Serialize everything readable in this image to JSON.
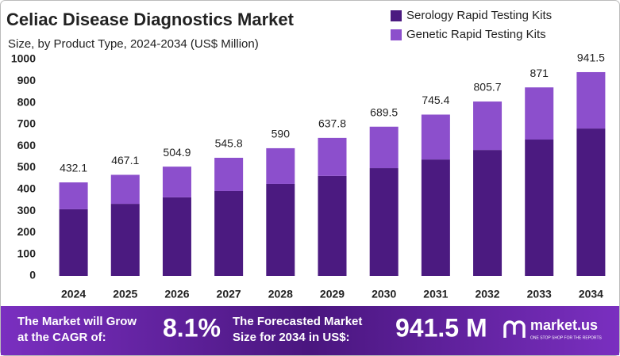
{
  "chart_data": {
    "type": "stacked-bar",
    "title": "Celiac Disease Diagnostics Market",
    "subtitle": "Size, by Product Type, 2024-2034 (US$ Million)",
    "categories": [
      "2024",
      "2025",
      "2026",
      "2027",
      "2028",
      "2029",
      "2030",
      "2031",
      "2032",
      "2033",
      "2034"
    ],
    "series": [
      {
        "name": "Serology Rapid Testing Kits",
        "color": "#4b1a80",
        "values": [
          308,
          333,
          363,
          392,
          425,
          462,
          498,
          538,
          582,
          630,
          681
        ]
      },
      {
        "name": "Genetic Rapid Testing Kits",
        "color": "#8c4fcc",
        "values": [
          124.1,
          134.1,
          141.9,
          153.8,
          165.0,
          175.8,
          191.5,
          207.4,
          223.7,
          241.0,
          260.5
        ]
      }
    ],
    "totals": [
      432.1,
      467.1,
      504.9,
      545.8,
      590.0,
      637.8,
      689.5,
      745.4,
      805.7,
      871.0,
      941.5
    ],
    "ylim": [
      0,
      1000
    ],
    "yticks": [
      0,
      100,
      200,
      300,
      400,
      500,
      600,
      700,
      800,
      900,
      1000
    ],
    "grid": false,
    "legend": "top-right"
  },
  "footer": {
    "cagr_text": [
      "The Market will Grow",
      "at the CAGR of:"
    ],
    "cagr_value": "8.1%",
    "forecast_text": [
      "The Forecasted Market",
      "Size for 2034 in US$:"
    ],
    "forecast_value": "941.5 M",
    "brand": "market.us",
    "tagline": "ONE STOP SHOP FOR THE REPORTS"
  }
}
